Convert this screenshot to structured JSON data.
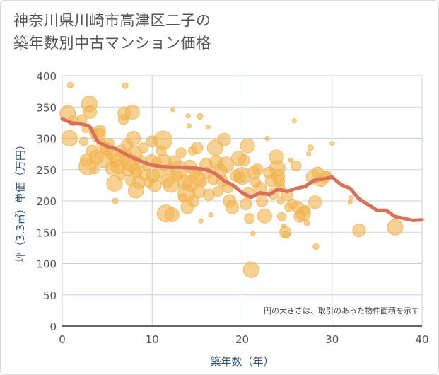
{
  "title_lines": [
    "神奈川県川崎市高津区二子の",
    "築年数別中古マンション価格"
  ],
  "chart_data": {
    "type": "scatter",
    "xlabel": "築年数（年）",
    "ylabel": "坪（3.3㎡）単価（万円）",
    "xlim": [
      0,
      40
    ],
    "ylim": [
      0,
      400
    ],
    "xticks": [
      "0",
      "10",
      "20",
      "30",
      "40"
    ],
    "yticks": [
      "0",
      "50",
      "100",
      "150",
      "200",
      "250",
      "300",
      "350",
      "400"
    ],
    "note": "円の大きさは、取引のあった物件面積を示す",
    "grid": true,
    "colors": {
      "bubble": "#f2b24d",
      "line": "#d9705a",
      "grid": "#c9d3df"
    },
    "trend": {
      "x": [
        0,
        1,
        2,
        3,
        4,
        5,
        6,
        7,
        8,
        9,
        10,
        11,
        12,
        13,
        14,
        15,
        16,
        17,
        18,
        19,
        20,
        21,
        22,
        23,
        24,
        25,
        26,
        27,
        28,
        29,
        30,
        31,
        32,
        33,
        34,
        35,
        36,
        37,
        38,
        39,
        40
      ],
      "y": [
        331,
        325,
        323,
        320,
        294,
        287,
        283,
        275,
        268,
        262,
        257,
        255,
        254,
        254,
        253,
        252,
        250,
        244,
        232,
        225,
        213,
        206,
        213,
        210,
        219,
        215,
        220,
        223,
        233,
        235,
        238,
        226,
        220,
        203,
        194,
        185,
        185,
        175,
        172,
        169,
        170
      ]
    },
    "points": [
      {
        "x": 0.6,
        "y": 340,
        "s": 11
      },
      {
        "x": 0.8,
        "y": 300,
        "s": 11
      },
      {
        "x": 0.9,
        "y": 385,
        "s": 4
      },
      {
        "x": 1.2,
        "y": 328,
        "s": 7
      },
      {
        "x": 2.2,
        "y": 330,
        "s": 7
      },
      {
        "x": 2.4,
        "y": 295,
        "s": 6
      },
      {
        "x": 2.6,
        "y": 315,
        "s": 5
      },
      {
        "x": 2.7,
        "y": 265,
        "s": 9
      },
      {
        "x": 2.8,
        "y": 255,
        "s": 12
      },
      {
        "x": 3.0,
        "y": 355,
        "s": 11
      },
      {
        "x": 3.1,
        "y": 342,
        "s": 9
      },
      {
        "x": 3.3,
        "y": 280,
        "s": 8
      },
      {
        "x": 3.5,
        "y": 310,
        "s": 6
      },
      {
        "x": 3.6,
        "y": 250,
        "s": 6
      },
      {
        "x": 3.8,
        "y": 270,
        "s": 10
      },
      {
        "x": 4.0,
        "y": 305,
        "s": 10
      },
      {
        "x": 4.2,
        "y": 312,
        "s": 8
      },
      {
        "x": 4.4,
        "y": 290,
        "s": 7
      },
      {
        "x": 4.6,
        "y": 268,
        "s": 13
      },
      {
        "x": 5.0,
        "y": 283,
        "s": 9
      },
      {
        "x": 5.2,
        "y": 292,
        "s": 7
      },
      {
        "x": 5.5,
        "y": 276,
        "s": 9
      },
      {
        "x": 5.6,
        "y": 252,
        "s": 10
      },
      {
        "x": 5.8,
        "y": 228,
        "s": 11
      },
      {
        "x": 5.9,
        "y": 200,
        "s": 4
      },
      {
        "x": 6.0,
        "y": 265,
        "s": 9
      },
      {
        "x": 6.2,
        "y": 255,
        "s": 10
      },
      {
        "x": 6.5,
        "y": 280,
        "s": 8
      },
      {
        "x": 6.6,
        "y": 240,
        "s": 6
      },
      {
        "x": 6.8,
        "y": 330,
        "s": 7
      },
      {
        "x": 6.9,
        "y": 340,
        "s": 9
      },
      {
        "x": 7.0,
        "y": 384,
        "s": 4
      },
      {
        "x": 7.1,
        "y": 270,
        "s": 10
      },
      {
        "x": 7.2,
        "y": 290,
        "s": 8
      },
      {
        "x": 7.3,
        "y": 250,
        "s": 9
      },
      {
        "x": 7.5,
        "y": 262,
        "s": 12
      },
      {
        "x": 7.6,
        "y": 232,
        "s": 7
      },
      {
        "x": 7.8,
        "y": 342,
        "s": 10
      },
      {
        "x": 7.9,
        "y": 300,
        "s": 10
      },
      {
        "x": 8.0,
        "y": 275,
        "s": 11
      },
      {
        "x": 8.1,
        "y": 250,
        "s": 8
      },
      {
        "x": 8.2,
        "y": 217,
        "s": 11
      },
      {
        "x": 8.3,
        "y": 245,
        "s": 7
      },
      {
        "x": 8.5,
        "y": 230,
        "s": 9
      },
      {
        "x": 8.7,
        "y": 262,
        "s": 9
      },
      {
        "x": 9.0,
        "y": 285,
        "s": 7
      },
      {
        "x": 9.2,
        "y": 242,
        "s": 8
      },
      {
        "x": 9.4,
        "y": 255,
        "s": 6
      },
      {
        "x": 9.6,
        "y": 230,
        "s": 7
      },
      {
        "x": 9.9,
        "y": 265,
        "s": 8
      },
      {
        "x": 10.0,
        "y": 295,
        "s": 8
      },
      {
        "x": 10.1,
        "y": 240,
        "s": 9
      },
      {
        "x": 10.3,
        "y": 225,
        "s": 9
      },
      {
        "x": 10.5,
        "y": 262,
        "s": 7
      },
      {
        "x": 10.7,
        "y": 245,
        "s": 8
      },
      {
        "x": 11.0,
        "y": 280,
        "s": 7
      },
      {
        "x": 11.2,
        "y": 297,
        "s": 13
      },
      {
        "x": 11.3,
        "y": 262,
        "s": 11
      },
      {
        "x": 11.5,
        "y": 180,
        "s": 12
      },
      {
        "x": 11.7,
        "y": 232,
        "s": 9
      },
      {
        "x": 11.9,
        "y": 250,
        "s": 8
      },
      {
        "x": 12.1,
        "y": 226,
        "s": 11
      },
      {
        "x": 12.2,
        "y": 178,
        "s": 10
      },
      {
        "x": 12.3,
        "y": 346,
        "s": 3
      },
      {
        "x": 12.5,
        "y": 262,
        "s": 9
      },
      {
        "x": 12.8,
        "y": 240,
        "s": 7
      },
      {
        "x": 13.0,
        "y": 250,
        "s": 12
      },
      {
        "x": 13.2,
        "y": 277,
        "s": 7
      },
      {
        "x": 13.4,
        "y": 205,
        "s": 6
      },
      {
        "x": 13.6,
        "y": 230,
        "s": 10
      },
      {
        "x": 13.8,
        "y": 212,
        "s": 12
      },
      {
        "x": 13.9,
        "y": 190,
        "s": 9
      },
      {
        "x": 14.0,
        "y": 336,
        "s": 3
      },
      {
        "x": 14.1,
        "y": 320,
        "s": 3
      },
      {
        "x": 14.2,
        "y": 255,
        "s": 9
      },
      {
        "x": 14.3,
        "y": 228,
        "s": 11
      },
      {
        "x": 14.5,
        "y": 280,
        "s": 6
      },
      {
        "x": 14.6,
        "y": 200,
        "s": 8
      },
      {
        "x": 14.8,
        "y": 245,
        "s": 8
      },
      {
        "x": 15.0,
        "y": 285,
        "s": 8
      },
      {
        "x": 15.1,
        "y": 236,
        "s": 10
      },
      {
        "x": 15.2,
        "y": 215,
        "s": 9
      },
      {
        "x": 15.3,
        "y": 335,
        "s": 4
      },
      {
        "x": 15.4,
        "y": 168,
        "s": 3
      },
      {
        "x": 15.6,
        "y": 230,
        "s": 6
      },
      {
        "x": 16.0,
        "y": 258,
        "s": 9
      },
      {
        "x": 16.1,
        "y": 245,
        "s": 8
      },
      {
        "x": 16.2,
        "y": 318,
        "s": 3
      },
      {
        "x": 16.3,
        "y": 210,
        "s": 8
      },
      {
        "x": 16.5,
        "y": 178,
        "s": 3
      },
      {
        "x": 16.8,
        "y": 235,
        "s": 8
      },
      {
        "x": 17.0,
        "y": 285,
        "s": 11
      },
      {
        "x": 17.1,
        "y": 262,
        "s": 9
      },
      {
        "x": 17.3,
        "y": 215,
        "s": 7
      },
      {
        "x": 17.5,
        "y": 248,
        "s": 10
      },
      {
        "x": 17.8,
        "y": 232,
        "s": 8
      },
      {
        "x": 18.0,
        "y": 298,
        "s": 9
      },
      {
        "x": 18.2,
        "y": 258,
        "s": 11
      },
      {
        "x": 18.4,
        "y": 222,
        "s": 8
      },
      {
        "x": 18.6,
        "y": 200,
        "s": 9
      },
      {
        "x": 18.9,
        "y": 190,
        "s": 9
      },
      {
        "x": 19.3,
        "y": 240,
        "s": 8
      },
      {
        "x": 19.6,
        "y": 268,
        "s": 10
      },
      {
        "x": 19.8,
        "y": 238,
        "s": 8
      },
      {
        "x": 20.0,
        "y": 240,
        "s": 12
      },
      {
        "x": 20.2,
        "y": 265,
        "s": 8
      },
      {
        "x": 20.4,
        "y": 195,
        "s": 8
      },
      {
        "x": 20.6,
        "y": 288,
        "s": 10
      },
      {
        "x": 20.7,
        "y": 213,
        "s": 8
      },
      {
        "x": 20.8,
        "y": 172,
        "s": 7
      },
      {
        "x": 21.0,
        "y": 90,
        "s": 11
      },
      {
        "x": 21.2,
        "y": 148,
        "s": 3
      },
      {
        "x": 21.3,
        "y": 245,
        "s": 9
      },
      {
        "x": 21.5,
        "y": 230,
        "s": 7
      },
      {
        "x": 21.7,
        "y": 250,
        "s": 8
      },
      {
        "x": 22.0,
        "y": 220,
        "s": 9
      },
      {
        "x": 22.2,
        "y": 200,
        "s": 8
      },
      {
        "x": 22.5,
        "y": 176,
        "s": 10
      },
      {
        "x": 22.8,
        "y": 300,
        "s": 3
      },
      {
        "x": 23.0,
        "y": 245,
        "s": 8
      },
      {
        "x": 23.2,
        "y": 232,
        "s": 8
      },
      {
        "x": 23.5,
        "y": 212,
        "s": 8
      },
      {
        "x": 23.8,
        "y": 270,
        "s": 10
      },
      {
        "x": 23.9,
        "y": 252,
        "s": 11
      },
      {
        "x": 24.0,
        "y": 240,
        "s": 9
      },
      {
        "x": 24.1,
        "y": 232,
        "s": 8
      },
      {
        "x": 24.2,
        "y": 222,
        "s": 7
      },
      {
        "x": 24.3,
        "y": 200,
        "s": 5
      },
      {
        "x": 24.4,
        "y": 175,
        "s": 6
      },
      {
        "x": 24.6,
        "y": 160,
        "s": 3
      },
      {
        "x": 24.8,
        "y": 150,
        "s": 8
      },
      {
        "x": 24.9,
        "y": 146,
        "s": 5
      },
      {
        "x": 25.0,
        "y": 210,
        "s": 8
      },
      {
        "x": 25.2,
        "y": 190,
        "s": 6
      },
      {
        "x": 25.4,
        "y": 265,
        "s": 3
      },
      {
        "x": 25.6,
        "y": 195,
        "s": 7
      },
      {
        "x": 25.8,
        "y": 328,
        "s": 3
      },
      {
        "x": 26.0,
        "y": 256,
        "s": 7
      },
      {
        "x": 26.2,
        "y": 190,
        "s": 8
      },
      {
        "x": 26.4,
        "y": 175,
        "s": 8
      },
      {
        "x": 26.8,
        "y": 180,
        "s": 10
      },
      {
        "x": 27.0,
        "y": 185,
        "s": 7
      },
      {
        "x": 27.2,
        "y": 165,
        "s": 4
      },
      {
        "x": 27.4,
        "y": 275,
        "s": 3
      },
      {
        "x": 27.6,
        "y": 285,
        "s": 4
      },
      {
        "x": 27.9,
        "y": 238,
        "s": 10
      },
      {
        "x": 28.1,
        "y": 198,
        "s": 9
      },
      {
        "x": 28.2,
        "y": 127,
        "s": 4
      },
      {
        "x": 28.4,
        "y": 245,
        "s": 8
      },
      {
        "x": 28.8,
        "y": 232,
        "s": 8
      },
      {
        "x": 29.2,
        "y": 238,
        "s": 8
      },
      {
        "x": 29.5,
        "y": 242,
        "s": 5
      },
      {
        "x": 30.0,
        "y": 292,
        "s": 3
      },
      {
        "x": 32.0,
        "y": 198,
        "s": 3
      },
      {
        "x": 32.1,
        "y": 205,
        "s": 3
      },
      {
        "x": 33.0,
        "y": 153,
        "s": 9
      },
      {
        "x": 37.0,
        "y": 158,
        "s": 11
      }
    ]
  }
}
